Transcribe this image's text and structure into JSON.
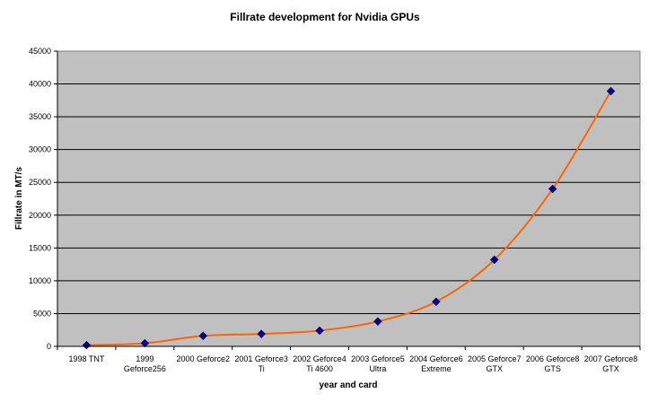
{
  "chart_data": {
    "type": "line",
    "title": "Fillrate development for Nvidia GPUs",
    "xlabel": "year and card",
    "ylabel": "Fillrate in MT/s",
    "ylim": [
      0,
      45000
    ],
    "yticks": [
      0,
      5000,
      10000,
      15000,
      20000,
      25000,
      30000,
      35000,
      40000,
      45000
    ],
    "grid": true,
    "legend": "none",
    "categories": [
      [
        "1998 TNT"
      ],
      [
        "1999",
        "Geforce256"
      ],
      [
        "2000 Geforce2"
      ],
      [
        "2001 Geforce3",
        "Ti"
      ],
      [
        "2002 Geforce4",
        "Ti 4600"
      ],
      [
        "2003 Geforce5",
        "Ultra"
      ],
      [
        "2004 Geforce6",
        "Extreme"
      ],
      [
        "2005 Geforce7",
        "GTX"
      ],
      [
        "2006 Geforce8",
        "GTS"
      ],
      [
        "2007 Geforce8",
        "GTX"
      ]
    ],
    "series": [
      {
        "name": "Fillrate",
        "values": [
          180,
          480,
          1600,
          1900,
          2400,
          3800,
          6800,
          13200,
          24000,
          38900
        ],
        "line_color": "#ff6600",
        "marker_color": "#000080"
      }
    ],
    "plot_background": "#c0c0c0"
  }
}
